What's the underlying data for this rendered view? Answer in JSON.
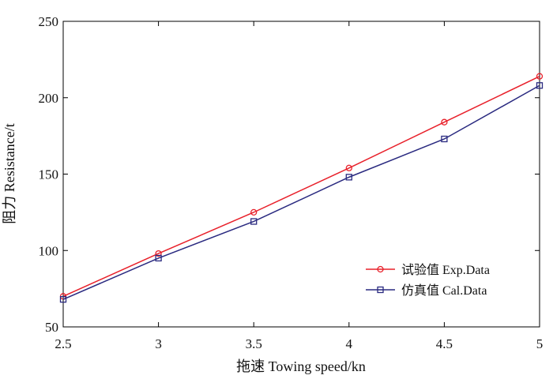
{
  "chart_data": {
    "type": "line",
    "title": "",
    "xlabel": "拖速 Towing speed/kn",
    "ylabel": "阻力 Resistance/t",
    "x": [
      2.5,
      3,
      3.5,
      4,
      4.5,
      5
    ],
    "xlim": [
      2.5,
      5
    ],
    "ylim": [
      50,
      250
    ],
    "xticks": [
      "2.5",
      "3",
      "3.5",
      "4",
      "4.5",
      "5"
    ],
    "yticks": [
      "50",
      "100",
      "150",
      "200",
      "250"
    ],
    "grid": false,
    "legend_position": "lower-right",
    "series": [
      {
        "name": "试验值 Exp.Data",
        "color": "#e8202a",
        "marker": "circle",
        "values": [
          70,
          98,
          125,
          154,
          184,
          214
        ]
      },
      {
        "name": "仿真值 Cal.Data",
        "color": "#2a2a80",
        "marker": "square",
        "values": [
          68,
          95,
          119,
          148,
          173,
          208
        ]
      }
    ]
  }
}
